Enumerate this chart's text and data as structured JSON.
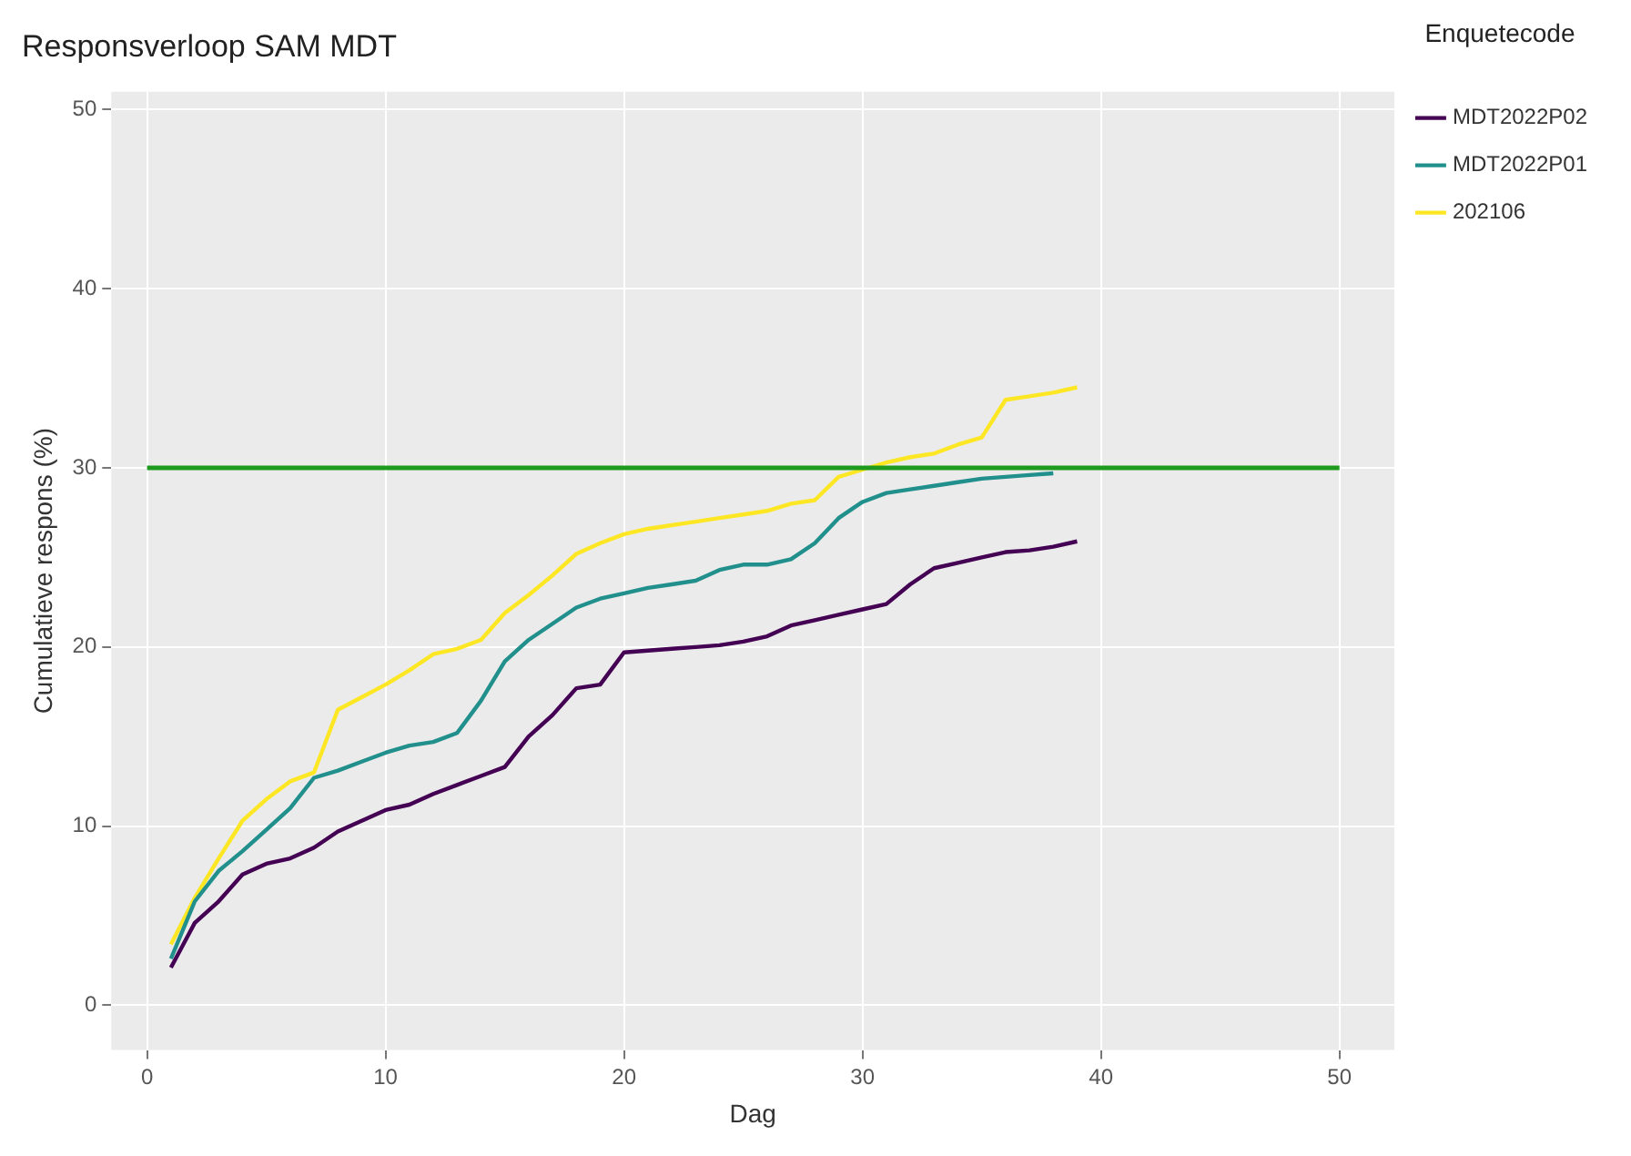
{
  "chart_data": {
    "type": "line",
    "title": "Responsverloop SAM MDT",
    "xlabel": "Dag",
    "ylabel": "Cumulatieve respons (%)",
    "legend_title": "Enquetecode",
    "legend": "right",
    "grid": true,
    "marker": "none",
    "line_style": "solid",
    "xlim": [
      -1.5,
      52.3
    ],
    "xticks": [
      0,
      10,
      20,
      30,
      40,
      50
    ],
    "ylim": [
      -2.5,
      51
    ],
    "yticks": [
      0,
      10,
      20,
      30,
      40,
      50
    ],
    "x": [
      1,
      2,
      3,
      4,
      5,
      6,
      7,
      8,
      9,
      10,
      11,
      12,
      13,
      14,
      15,
      16,
      17,
      18,
      19,
      20,
      21,
      22,
      23,
      24,
      25,
      26,
      27,
      28,
      29,
      30,
      31,
      32,
      33,
      34,
      35,
      36,
      37,
      38,
      39
    ],
    "series": [
      {
        "name": "MDT2022P02",
        "color": "#440154",
        "values": [
          2.1,
          4.6,
          5.8,
          7.3,
          7.9,
          8.2,
          8.8,
          9.7,
          10.3,
          10.9,
          11.2,
          11.8,
          12.3,
          12.8,
          13.3,
          15.0,
          16.2,
          17.7,
          17.9,
          19.7,
          19.8,
          19.9,
          20.0,
          20.1,
          20.3,
          20.6,
          21.2,
          21.5,
          21.8,
          22.1,
          22.4,
          23.5,
          24.4,
          24.7,
          25.0,
          25.3,
          25.4,
          25.6,
          25.9
        ]
      },
      {
        "name": "MDT2022P01",
        "color": "#21908c",
        "values": [
          2.6,
          5.8,
          7.5,
          8.6,
          9.8,
          11.0,
          12.7,
          13.1,
          13.6,
          14.1,
          14.5,
          14.7,
          15.2,
          17.0,
          19.2,
          20.4,
          21.3,
          22.2,
          22.7,
          23.0,
          23.3,
          23.5,
          23.7,
          24.3,
          24.6,
          24.6,
          24.9,
          25.8,
          27.2,
          28.1,
          28.6,
          28.8,
          29.0,
          29.2,
          29.4,
          29.5,
          29.6,
          29.7,
          null
        ]
      },
      {
        "name": "202106",
        "color": "#fde725",
        "values": [
          3.4,
          6.0,
          8.2,
          10.3,
          11.5,
          12.5,
          13.0,
          16.5,
          17.2,
          17.9,
          18.7,
          19.6,
          19.9,
          20.4,
          21.9,
          22.9,
          24.0,
          25.2,
          25.8,
          26.3,
          26.6,
          26.8,
          27.0,
          27.2,
          27.4,
          27.6,
          28.0,
          28.2,
          29.5,
          29.9,
          30.3,
          30.6,
          30.8,
          31.3,
          31.7,
          33.8,
          34.0,
          34.2,
          34.5
        ]
      }
    ],
    "ref_lines": [
      {
        "axis": "y",
        "value": 30,
        "color": "#1e9a1e",
        "line_style": "solid"
      }
    ]
  }
}
